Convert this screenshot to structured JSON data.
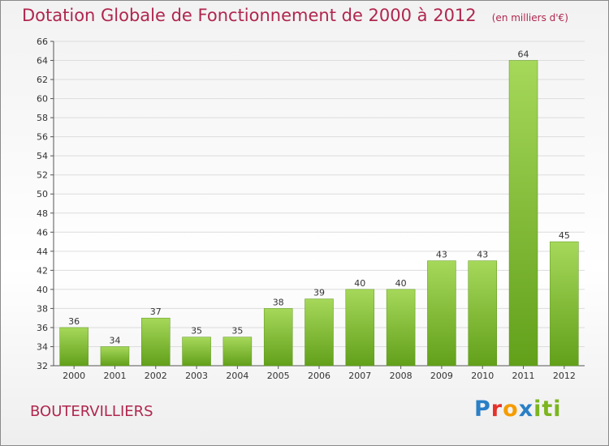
{
  "title": "Dotation Globale de Fonctionnement de 2000 à 2012",
  "unit_note": "(en milliers d'€)",
  "commune": "BOUTERVILLIERS",
  "logo": "Proxiti",
  "colors": {
    "title": "#b0264e",
    "bar_light": "#a6d85a",
    "bar_dark": "#62a01a"
  },
  "chart_data": {
    "type": "bar",
    "title": "Dotation Globale de Fonctionnement de 2000 à 2012",
    "subtitle": "(en milliers d'€)",
    "categories": [
      "2000",
      "2001",
      "2002",
      "2003",
      "2004",
      "2005",
      "2006",
      "2007",
      "2008",
      "2009",
      "2010",
      "2011",
      "2012"
    ],
    "values": [
      36,
      34,
      37,
      35,
      35,
      38,
      39,
      40,
      40,
      43,
      43,
      64,
      45
    ],
    "ylim": [
      32,
      66
    ],
    "yticks": [
      32,
      34,
      36,
      38,
      40,
      42,
      44,
      46,
      48,
      50,
      52,
      54,
      56,
      58,
      60,
      62,
      64,
      66
    ],
    "grid": true,
    "data_labels": true,
    "xlabel": "",
    "ylabel": ""
  }
}
